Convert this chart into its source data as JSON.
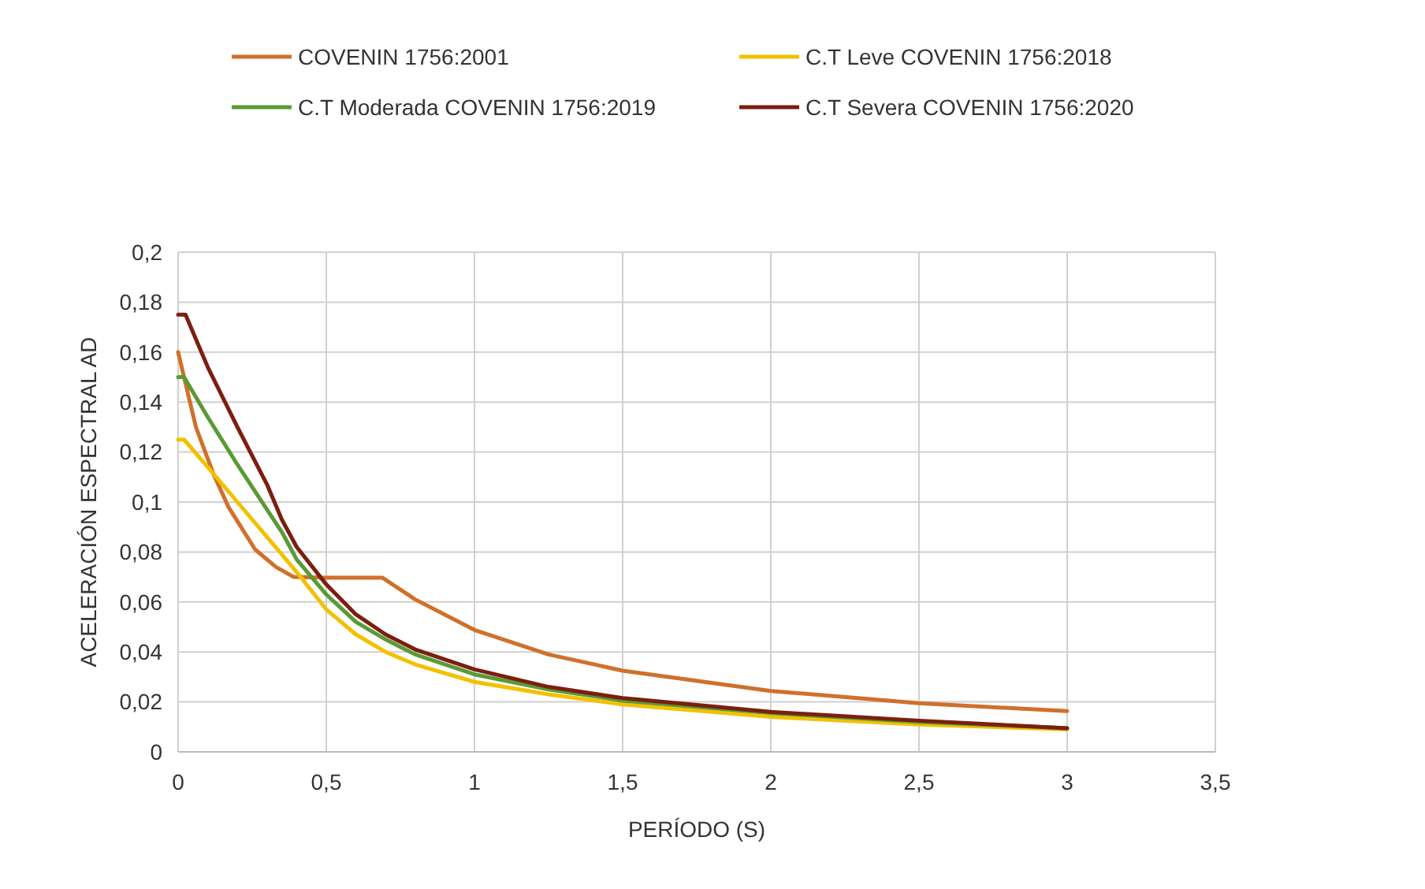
{
  "chart_data": {
    "type": "line",
    "xlabel": "PERÍODO (S)",
    "ylabel": "ACELERACIÓN ESPECTRAL AD",
    "xlim": [
      0,
      3.5
    ],
    "xticks": [
      0,
      {
        "value": 0.5,
        "label": "0,5"
      },
      1,
      {
        "value": 1.5,
        "label": "1,5"
      },
      2,
      {
        "value": 2.5,
        "label": "2,5"
      },
      3,
      {
        "value": 3.5,
        "label": "3,5"
      }
    ],
    "ylim": [
      0,
      0.2
    ],
    "yticks": [
      0,
      {
        "value": 0.02,
        "label": "0,02"
      },
      {
        "value": 0.04,
        "label": "0,04"
      },
      {
        "value": 0.06,
        "label": "0,06"
      },
      {
        "value": 0.08,
        "label": "0,08"
      },
      {
        "value": 0.1,
        "label": "0,1"
      },
      {
        "value": 0.12,
        "label": "0,12"
      },
      {
        "value": 0.14,
        "label": "0,14"
      },
      {
        "value": 0.16,
        "label": "0,16"
      },
      {
        "value": 0.18,
        "label": "0,18"
      },
      {
        "value": 0.2,
        "label": "0,2"
      }
    ],
    "grid": true,
    "legend": "top",
    "marker": "none",
    "line_style": "solid",
    "series": [
      {
        "name": "COVENIN 1756:2001",
        "color": "#d0702a",
        "x": [
          0,
          0.06,
          0.12,
          0.17,
          0.26,
          0.33,
          0.39,
          0.5,
          0.6,
          0.69,
          0.8,
          1,
          1.25,
          1.5,
          2,
          2.5,
          3
        ],
        "values": [
          0.16,
          0.13,
          0.111,
          0.098,
          0.081,
          0.074,
          0.07,
          0.0697,
          0.0697,
          0.0697,
          0.061,
          0.0488,
          0.039,
          0.0325,
          0.0244,
          0.0195,
          0.0163
        ]
      },
      {
        "name": "C.T Leve COVENIN 1756:2018",
        "color": "#f2c100",
        "x": [
          0,
          0.02,
          0.1,
          0.2,
          0.3,
          0.4,
          0.5,
          0.6,
          0.7,
          0.8,
          1,
          1.25,
          1.5,
          2,
          2.5,
          3
        ],
        "values": [
          0.125,
          0.125,
          0.114,
          0.1,
          0.086,
          0.072,
          0.057,
          0.047,
          0.04,
          0.035,
          0.028,
          0.023,
          0.019,
          0.014,
          0.011,
          0.009
        ]
      },
      {
        "name": "C.T Moderada COVENIN 1756:2019",
        "color": "#5a9a35",
        "x": [
          0,
          0.02,
          0.1,
          0.2,
          0.3,
          0.35,
          0.4,
          0.5,
          0.6,
          0.7,
          0.8,
          1,
          1.25,
          1.5,
          2,
          2.5,
          3
        ],
        "values": [
          0.15,
          0.15,
          0.134,
          0.115,
          0.097,
          0.088,
          0.077,
          0.063,
          0.052,
          0.045,
          0.039,
          0.031,
          0.025,
          0.0205,
          0.0155,
          0.012,
          0.0095
        ]
      },
      {
        "name": "C.T Severa COVENIN 1756:2020",
        "color": "#7b1f10",
        "x": [
          0,
          0.025,
          0.1,
          0.2,
          0.3,
          0.35,
          0.4,
          0.5,
          0.6,
          0.7,
          0.8,
          1,
          1.25,
          1.5,
          2,
          2.5,
          3
        ],
        "values": [
          0.175,
          0.175,
          0.154,
          0.13,
          0.107,
          0.093,
          0.082,
          0.067,
          0.055,
          0.047,
          0.041,
          0.033,
          0.026,
          0.0215,
          0.016,
          0.0125,
          0.0095
        ]
      }
    ]
  }
}
